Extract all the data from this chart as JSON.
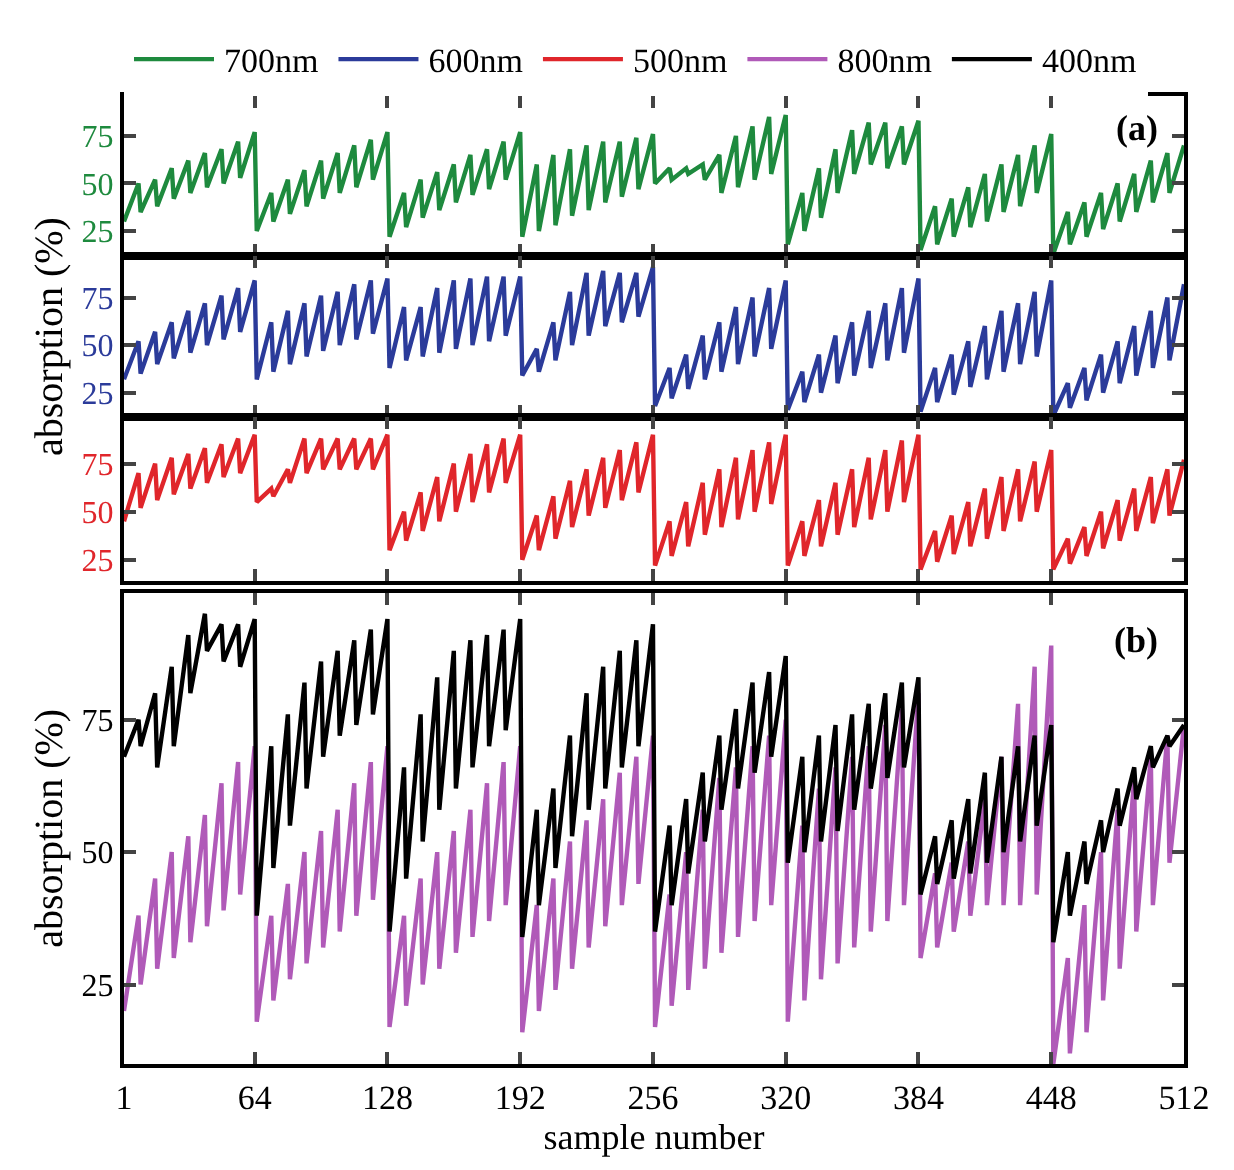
{
  "chart_data": [
    {
      "type": "line",
      "annotations": [
        "(a)"
      ],
      "legend": "top",
      "tick_labels": "y",
      "marker": "none",
      "line_style": "solid",
      "grid": false,
      "x": [
        1,
        8,
        9,
        16,
        17,
        24,
        25,
        32,
        33,
        40,
        41,
        48,
        49,
        56,
        57,
        64,
        65,
        72,
        73,
        80,
        81,
        88,
        89,
        96,
        97,
        104,
        105,
        112,
        113,
        120,
        121,
        128,
        129,
        136,
        137,
        144,
        145,
        152,
        153,
        160,
        161,
        168,
        169,
        176,
        177,
        184,
        185,
        192,
        193,
        200,
        201,
        208,
        209,
        216,
        217,
        224,
        225,
        232,
        233,
        240,
        241,
        248,
        249,
        256,
        257,
        264,
        265,
        272,
        273,
        280,
        281,
        288,
        289,
        296,
        297,
        304,
        305,
        312,
        313,
        320,
        321,
        328,
        329,
        336,
        337,
        344,
        345,
        352,
        353,
        360,
        361,
        368,
        369,
        376,
        377,
        384,
        385,
        392,
        393,
        400,
        401,
        408,
        409,
        416,
        417,
        424,
        425,
        432,
        433,
        440,
        441,
        448,
        449,
        456,
        457,
        464,
        465,
        472,
        473,
        480,
        481,
        488,
        489,
        496,
        497,
        504,
        505,
        512
      ],
      "xlim": [
        1,
        512
      ],
      "xticks": [
        1,
        64,
        128,
        192,
        256,
        320,
        384,
        448,
        512
      ],
      "ylim": [
        12,
        96
      ],
      "yticks": [
        25,
        50,
        75
      ],
      "series": [
        {
          "name": "700nm",
          "color": "#1e8a3e",
          "values": [
            30,
            50,
            35,
            52,
            38,
            58,
            42,
            62,
            45,
            66,
            48,
            68,
            50,
            72,
            53,
            77,
            25,
            45,
            30,
            52,
            34,
            57,
            38,
            62,
            42,
            66,
            45,
            70,
            48,
            73,
            52,
            77,
            22,
            45,
            27,
            52,
            32,
            56,
            36,
            60,
            40,
            65,
            44,
            68,
            47,
            72,
            52,
            77,
            22,
            60,
            25,
            65,
            28,
            68,
            33,
            70,
            36,
            72,
            40,
            72,
            43,
            74,
            47,
            76,
            50,
            58,
            52,
            58,
            55,
            60,
            52,
            65,
            45,
            75,
            48,
            80,
            52,
            85,
            55,
            86,
            18,
            45,
            25,
            58,
            32,
            68,
            45,
            78,
            55,
            82,
            60,
            82,
            58,
            80,
            60,
            83,
            15,
            38,
            18,
            42,
            22,
            48,
            27,
            55,
            30,
            60,
            35,
            65,
            38,
            70,
            45,
            76,
            13,
            35,
            18,
            40,
            22,
            45,
            26,
            50,
            30,
            55,
            35,
            62,
            40,
            66,
            45,
            70
          ]
        }
      ]
    },
    {
      "type": "line",
      "ylabel": "absorption (%)",
      "legend": "top",
      "tick_labels": "y",
      "marker": "none",
      "line_style": "solid",
      "grid": false,
      "x": [
        1,
        8,
        9,
        16,
        17,
        24,
        25,
        32,
        33,
        40,
        41,
        48,
        49,
        56,
        57,
        64,
        65,
        72,
        73,
        80,
        81,
        88,
        89,
        96,
        97,
        104,
        105,
        112,
        113,
        120,
        121,
        128,
        129,
        136,
        137,
        144,
        145,
        152,
        153,
        160,
        161,
        168,
        169,
        176,
        177,
        184,
        185,
        192,
        193,
        200,
        201,
        208,
        209,
        216,
        217,
        224,
        225,
        232,
        233,
        240,
        241,
        248,
        249,
        256,
        257,
        264,
        265,
        272,
        273,
        280,
        281,
        288,
        289,
        296,
        297,
        304,
        305,
        312,
        313,
        320,
        321,
        328,
        329,
        336,
        337,
        344,
        345,
        352,
        353,
        360,
        361,
        368,
        369,
        376,
        377,
        384,
        385,
        392,
        393,
        400,
        401,
        408,
        409,
        416,
        417,
        424,
        425,
        432,
        433,
        440,
        441,
        448,
        449,
        456,
        457,
        464,
        465,
        472,
        473,
        480,
        481,
        488,
        489,
        496,
        497,
        504,
        505,
        512
      ],
      "xlim": [
        1,
        512
      ],
      "xticks": [
        1,
        64,
        128,
        192,
        256,
        320,
        384,
        448,
        512
      ],
      "ylim": [
        12,
        97
      ],
      "yticks": [
        25,
        50,
        75
      ],
      "series": [
        {
          "name": "600nm",
          "color": "#2b3b9a",
          "values": [
            32,
            52,
            35,
            57,
            40,
            62,
            43,
            68,
            46,
            72,
            50,
            76,
            53,
            80,
            57,
            84,
            32,
            62,
            36,
            68,
            40,
            72,
            44,
            76,
            47,
            78,
            50,
            82,
            53,
            84,
            56,
            85,
            38,
            70,
            42,
            70,
            44,
            80,
            46,
            84,
            48,
            85,
            50,
            86,
            52,
            86,
            55,
            86,
            34,
            48,
            36,
            62,
            42,
            78,
            50,
            88,
            55,
            89,
            60,
            88,
            62,
            88,
            65,
            91,
            18,
            38,
            22,
            45,
            27,
            55,
            32,
            62,
            36,
            70,
            40,
            75,
            44,
            80,
            48,
            84,
            16,
            36,
            20,
            45,
            25,
            55,
            30,
            62,
            34,
            68,
            38,
            72,
            42,
            80,
            46,
            85,
            15,
            38,
            20,
            45,
            24,
            52,
            28,
            60,
            32,
            68,
            36,
            72,
            40,
            78,
            44,
            84,
            13,
            30,
            17,
            38,
            21,
            45,
            25,
            52,
            30,
            60,
            34,
            68,
            38,
            75,
            42,
            82
          ]
        }
      ]
    },
    {
      "type": "line",
      "legend": "top",
      "tick_labels": "y",
      "marker": "none",
      "line_style": "solid",
      "grid": false,
      "x": [
        1,
        8,
        9,
        16,
        17,
        24,
        25,
        32,
        33,
        40,
        41,
        48,
        49,
        56,
        57,
        64,
        65,
        72,
        73,
        80,
        81,
        88,
        89,
        96,
        97,
        104,
        105,
        112,
        113,
        120,
        121,
        128,
        129,
        136,
        137,
        144,
        145,
        152,
        153,
        160,
        161,
        168,
        169,
        176,
        177,
        184,
        185,
        192,
        193,
        200,
        201,
        208,
        209,
        216,
        217,
        224,
        225,
        232,
        233,
        240,
        241,
        248,
        249,
        256,
        257,
        264,
        265,
        272,
        273,
        280,
        281,
        288,
        289,
        296,
        297,
        304,
        305,
        312,
        313,
        320,
        321,
        328,
        329,
        336,
        337,
        344,
        345,
        352,
        353,
        360,
        361,
        368,
        369,
        376,
        377,
        384,
        385,
        392,
        393,
        400,
        401,
        408,
        409,
        416,
        417,
        424,
        425,
        432,
        433,
        440,
        441,
        448,
        449,
        456,
        457,
        464,
        465,
        472,
        473,
        480,
        481,
        488,
        489,
        496,
        497,
        504,
        505,
        512
      ],
      "xlim": [
        1,
        512
      ],
      "xticks": [
        1,
        64,
        128,
        192,
        256,
        320,
        384,
        448,
        512
      ],
      "ylim": [
        14,
        99
      ],
      "yticks": [
        25,
        50,
        75
      ],
      "series": [
        {
          "name": "500nm",
          "color": "#e0262b",
          "values": [
            45,
            70,
            52,
            75,
            56,
            78,
            59,
            80,
            62,
            83,
            65,
            85,
            68,
            88,
            70,
            90,
            55,
            62,
            58,
            72,
            65,
            88,
            70,
            88,
            72,
            88,
            72,
            88,
            72,
            88,
            72,
            90,
            30,
            50,
            35,
            60,
            40,
            68,
            45,
            75,
            50,
            80,
            55,
            85,
            60,
            88,
            65,
            90,
            25,
            48,
            30,
            58,
            36,
            66,
            42,
            72,
            48,
            78,
            52,
            82,
            56,
            86,
            60,
            90,
            22,
            45,
            27,
            55,
            32,
            65,
            38,
            72,
            42,
            78,
            46,
            82,
            50,
            86,
            54,
            90,
            22,
            45,
            27,
            56,
            32,
            65,
            38,
            72,
            42,
            78,
            46,
            82,
            50,
            87,
            55,
            90,
            20,
            40,
            24,
            48,
            28,
            55,
            32,
            62,
            36,
            68,
            40,
            72,
            45,
            76,
            50,
            82,
            20,
            36,
            23,
            42,
            27,
            50,
            31,
            56,
            35,
            62,
            40,
            68,
            44,
            72,
            48,
            77
          ]
        }
      ]
    },
    {
      "type": "line",
      "annotations": [
        "(b)"
      ],
      "xlabel": "sample number",
      "ylabel": "absorption (%)",
      "legend": "top",
      "marker": "none",
      "line_style": "solid",
      "grid": false,
      "x": [
        1,
        8,
        9,
        16,
        17,
        24,
        25,
        32,
        33,
        40,
        41,
        48,
        49,
        56,
        57,
        64,
        65,
        72,
        73,
        80,
        81,
        88,
        89,
        96,
        97,
        104,
        105,
        112,
        113,
        120,
        121,
        128,
        129,
        136,
        137,
        144,
        145,
        152,
        153,
        160,
        161,
        168,
        169,
        176,
        177,
        184,
        185,
        192,
        193,
        200,
        201,
        208,
        209,
        216,
        217,
        224,
        225,
        232,
        233,
        240,
        241,
        248,
        249,
        256,
        257,
        264,
        265,
        272,
        273,
        280,
        281,
        288,
        289,
        296,
        297,
        304,
        305,
        312,
        313,
        320,
        321,
        328,
        329,
        336,
        337,
        344,
        345,
        352,
        353,
        360,
        361,
        368,
        369,
        376,
        377,
        384,
        385,
        392,
        393,
        400,
        401,
        408,
        409,
        416,
        417,
        424,
        425,
        432,
        433,
        440,
        441,
        448,
        449,
        456,
        457,
        464,
        465,
        472,
        473,
        480,
        481,
        488,
        489,
        496,
        497,
        504,
        505,
        512
      ],
      "xlim": [
        1,
        512
      ],
      "xticks": [
        1,
        64,
        128,
        192,
        256,
        320,
        384,
        448,
        512
      ],
      "ylim": [
        10,
        99
      ],
      "yticks": [
        25,
        50,
        75
      ],
      "series": [
        {
          "name": "800nm",
          "color": "#b05ab8",
          "values": [
            20,
            38,
            25,
            45,
            28,
            50,
            30,
            53,
            33,
            57,
            36,
            63,
            39,
            67,
            42,
            70,
            18,
            38,
            22,
            44,
            26,
            50,
            29,
            54,
            32,
            58,
            35,
            63,
            38,
            67,
            41,
            70,
            17,
            38,
            21,
            45,
            25,
            50,
            28,
            54,
            31,
            58,
            34,
            63,
            37,
            67,
            40,
            70,
            16,
            40,
            20,
            45,
            24,
            52,
            28,
            56,
            32,
            60,
            36,
            65,
            40,
            68,
            44,
            72,
            17,
            42,
            21,
            50,
            24,
            58,
            28,
            64,
            31,
            66,
            34,
            70,
            37,
            72,
            40,
            75,
            18,
            55,
            22,
            62,
            26,
            66,
            29,
            68,
            32,
            70,
            35,
            74,
            37,
            77,
            40,
            80,
            30,
            46,
            32,
            48,
            35,
            52,
            38,
            60,
            40,
            68,
            40,
            78,
            40,
            85,
            42,
            89,
            10,
            30,
            12,
            40,
            16,
            50,
            22,
            58,
            28,
            64,
            35,
            68,
            40,
            72,
            48,
            74
          ]
        },
        {
          "name": "400nm",
          "color": "#000000",
          "values": [
            68,
            75,
            70,
            80,
            66,
            85,
            70,
            91,
            80,
            95,
            88,
            93,
            86,
            93,
            85,
            94,
            38,
            70,
            47,
            76,
            55,
            82,
            62,
            86,
            68,
            88,
            72,
            90,
            74,
            92,
            76,
            94,
            35,
            66,
            45,
            76,
            52,
            83,
            58,
            88,
            62,
            90,
            66,
            91,
            70,
            92,
            73,
            94,
            34,
            58,
            40,
            62,
            47,
            72,
            53,
            80,
            58,
            85,
            62,
            88,
            66,
            90,
            70,
            93,
            35,
            55,
            40,
            60,
            46,
            65,
            52,
            72,
            58,
            77,
            62,
            82,
            65,
            84,
            68,
            87,
            48,
            68,
            50,
            72,
            52,
            74,
            54,
            76,
            58,
            78,
            62,
            80,
            64,
            82,
            66,
            83,
            42,
            53,
            44,
            56,
            45,
            60,
            46,
            65,
            48,
            68,
            50,
            70,
            52,
            72,
            55,
            74,
            33,
            50,
            38,
            52,
            44,
            56,
            50,
            62,
            55,
            66,
            60,
            70,
            66,
            72,
            70,
            74
          ]
        }
      ]
    }
  ]
}
